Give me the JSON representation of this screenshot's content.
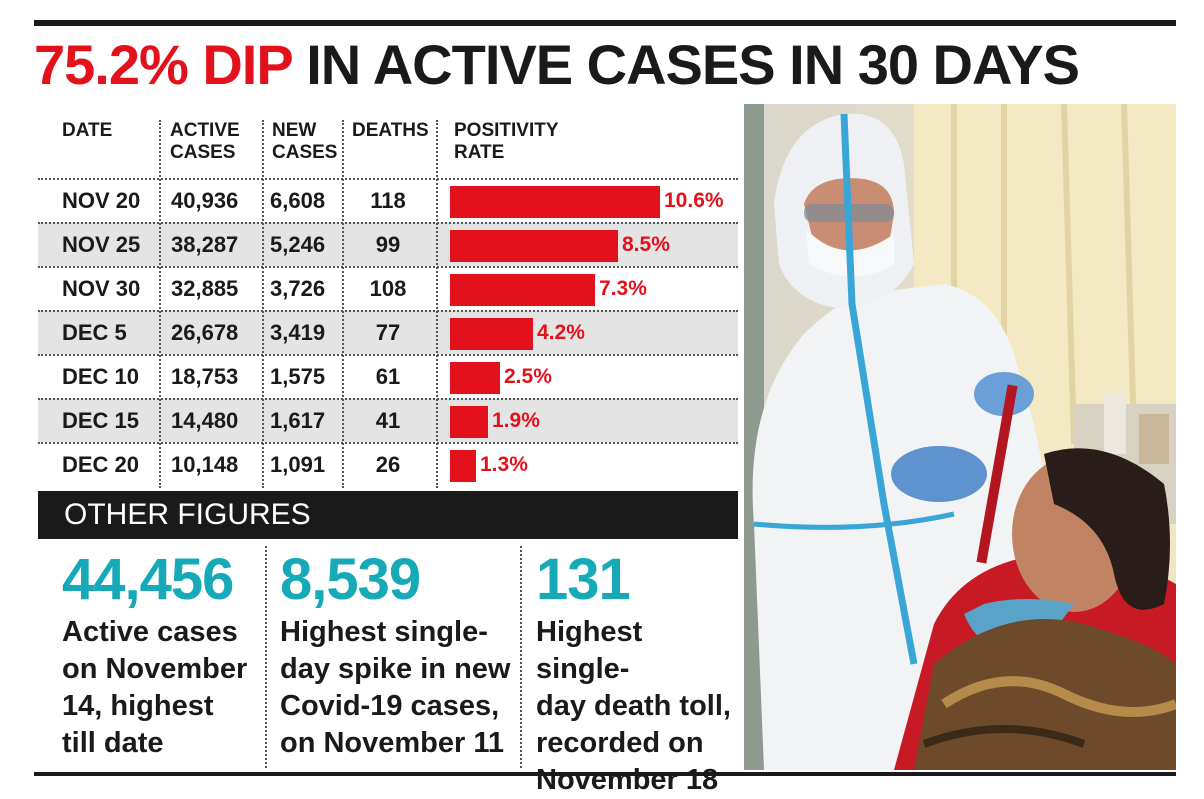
{
  "headline": {
    "accent": "75.2% DIP",
    "rest": " IN ACTIVE CASES IN 30 DAYS"
  },
  "table": {
    "headers": {
      "date": "DATE",
      "active": [
        "ACTIVE",
        "CASES"
      ],
      "new": [
        "NEW",
        "CASES"
      ],
      "deaths": "DEATHS",
      "positivity": [
        "POSITIVITY",
        "RATE"
      ]
    },
    "rows": [
      {
        "date": "NOV 20",
        "active": "40,936",
        "new": "6,608",
        "deaths": "118",
        "positivity": "10.6%"
      },
      {
        "date": "NOV 25",
        "active": "38,287",
        "new": "5,246",
        "deaths": "99",
        "positivity": "8.5%"
      },
      {
        "date": "NOV 30",
        "active": "32,885",
        "new": "3,726",
        "deaths": "108",
        "positivity": "7.3%"
      },
      {
        "date": "DEC 5",
        "active": "26,678",
        "new": "3,419",
        "deaths": "77",
        "positivity": "4.2%"
      },
      {
        "date": "DEC 10",
        "active": "18,753",
        "new": "1,575",
        "deaths": "61",
        "positivity": "2.5%"
      },
      {
        "date": "DEC 15",
        "active": "14,480",
        "new": "1,617",
        "deaths": "41",
        "positivity": "1.9%"
      },
      {
        "date": "DEC 20",
        "active": "10,148",
        "new": "1,091",
        "deaths": "26",
        "positivity": "1.3%"
      }
    ]
  },
  "chart_data": {
    "type": "bar",
    "orientation": "horizontal",
    "categories": [
      "NOV 20",
      "NOV 25",
      "NOV 30",
      "DEC 5",
      "DEC 10",
      "DEC 15",
      "DEC 20"
    ],
    "values": [
      10.6,
      8.5,
      7.3,
      4.2,
      2.5,
      1.9,
      1.3
    ],
    "value_labels": [
      "10.6%",
      "8.5%",
      "7.3%",
      "4.2%",
      "2.5%",
      "1.9%",
      "1.3%"
    ],
    "bar_color": "#e3111b"
  },
  "other_figures": {
    "title": "OTHER FIGURES",
    "items": [
      {
        "number": "44,456",
        "lines": [
          "Active cases",
          "on November",
          "14, highest",
          "till date"
        ]
      },
      {
        "number": "8,539",
        "lines": [
          "Highest single-",
          "day spike in new",
          "Covid-19 cases,",
          "on November 11"
        ]
      },
      {
        "number": "131",
        "lines": [
          "Highest single-",
          "day death toll,",
          "recorded on",
          "November 18"
        ]
      }
    ]
  },
  "colors": {
    "accent_red": "#e3111b",
    "accent_teal": "#16a9b8",
    "dark": "#1a1a1a",
    "row_alt": "#e4e4e4"
  }
}
